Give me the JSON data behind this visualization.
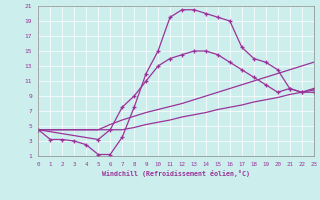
{
  "xlabel": "Windchill (Refroidissement éolien,°C)",
  "xlim": [
    0,
    23
  ],
  "ylim": [
    1,
    21
  ],
  "xticks": [
    0,
    1,
    2,
    3,
    4,
    5,
    6,
    7,
    8,
    9,
    10,
    11,
    12,
    13,
    14,
    15,
    16,
    17,
    18,
    19,
    20,
    21,
    22,
    23
  ],
  "yticks": [
    1,
    3,
    5,
    7,
    9,
    11,
    13,
    15,
    17,
    19,
    21
  ],
  "bg_color": "#cceeed",
  "line_color": "#993399",
  "curve1_x": [
    0,
    1,
    2,
    3,
    4,
    5,
    6,
    7,
    8,
    9,
    10,
    11,
    12,
    13,
    14,
    15,
    16,
    17,
    18,
    19,
    20,
    21,
    22,
    23
  ],
  "curve1_y": [
    4.5,
    3.2,
    3.2,
    3.0,
    2.5,
    1.2,
    1.2,
    3.5,
    7.5,
    12.0,
    15.0,
    19.5,
    20.5,
    20.5,
    20.0,
    19.5,
    19.0,
    15.5,
    14.0,
    13.5,
    12.5,
    10.0,
    9.5,
    10.0
  ],
  "curve2_x": [
    0,
    1,
    2,
    3,
    4,
    5,
    6,
    7,
    8,
    9,
    10,
    11,
    12,
    13,
    14,
    15,
    16,
    17,
    18,
    19,
    20,
    21,
    22,
    23
  ],
  "curve2_y": [
    4.5,
    4.5,
    4.5,
    4.5,
    4.5,
    4.5,
    5.2,
    5.8,
    6.3,
    6.8,
    7.2,
    7.6,
    8.0,
    8.5,
    9.0,
    9.5,
    10.0,
    10.5,
    11.0,
    11.5,
    12.0,
    12.5,
    13.0,
    13.5
  ],
  "curve3_x": [
    0,
    1,
    2,
    3,
    4,
    5,
    6,
    7,
    8,
    9,
    10,
    11,
    12,
    13,
    14,
    15,
    16,
    17,
    18,
    19,
    20,
    21,
    22,
    23
  ],
  "curve3_y": [
    4.5,
    4.5,
    4.5,
    4.5,
    4.5,
    4.5,
    4.5,
    4.5,
    4.8,
    5.2,
    5.5,
    5.8,
    6.2,
    6.5,
    6.8,
    7.2,
    7.5,
    7.8,
    8.2,
    8.5,
    8.8,
    9.2,
    9.5,
    9.8
  ],
  "curve4_x": [
    0,
    5,
    6,
    7,
    8,
    9,
    10,
    11,
    12,
    13,
    14,
    15,
    16,
    17,
    18,
    19,
    20,
    21,
    22,
    23
  ],
  "curve4_y": [
    4.5,
    3.2,
    4.5,
    7.5,
    9.0,
    11.0,
    13.0,
    14.0,
    14.5,
    15.0,
    15.0,
    14.5,
    13.5,
    12.5,
    11.5,
    10.5,
    9.5,
    10.0,
    9.5,
    9.5
  ]
}
